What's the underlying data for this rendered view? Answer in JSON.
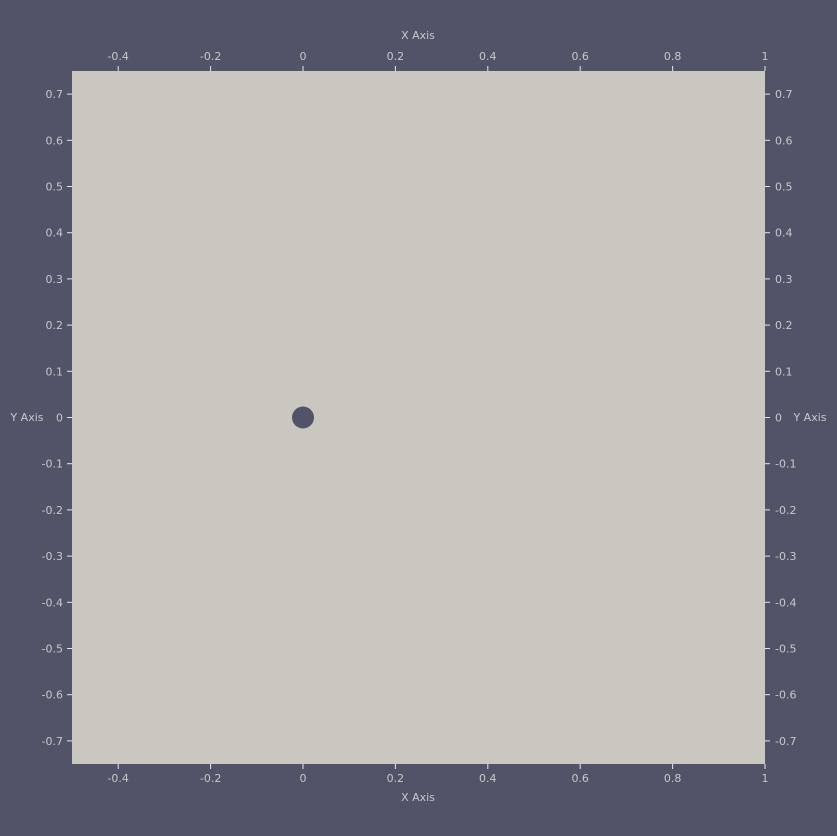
{
  "chart_data": {
    "type": "scatter",
    "x_axis_title": "X Axis",
    "y_axis_title": "Y Axis",
    "xlim": [
      -0.5,
      1.0
    ],
    "ylim": [
      -0.75,
      0.75
    ],
    "x_ticks": [
      -0.4,
      -0.2,
      0,
      0.2,
      0.4,
      0.6,
      0.8,
      1
    ],
    "x_tick_labels": [
      "-0.4",
      "-0.2",
      "0",
      "0.2",
      "0.4",
      "0.6",
      "0.8",
      "1"
    ],
    "y_ticks": [
      0.7,
      0.6,
      0.5,
      0.4,
      0.3,
      0.2,
      0.1,
      0,
      -0.1,
      -0.2,
      -0.3,
      -0.4,
      -0.5,
      -0.6,
      -0.7
    ],
    "y_tick_labels": [
      "0.7",
      "0.6",
      "0.5",
      "0.4",
      "0.3",
      "0.2",
      "0.1",
      "0",
      "-0.1",
      "-0.2",
      "-0.3",
      "-0.4",
      "-0.5",
      "-0.6",
      "-0.7"
    ],
    "points": [
      {
        "x": 0,
        "y": 0
      }
    ],
    "grid": false,
    "colors": {
      "background": "#515469",
      "plot_area": "#c9c7c0",
      "point": "#515469",
      "text": "#c9c8c5"
    }
  }
}
